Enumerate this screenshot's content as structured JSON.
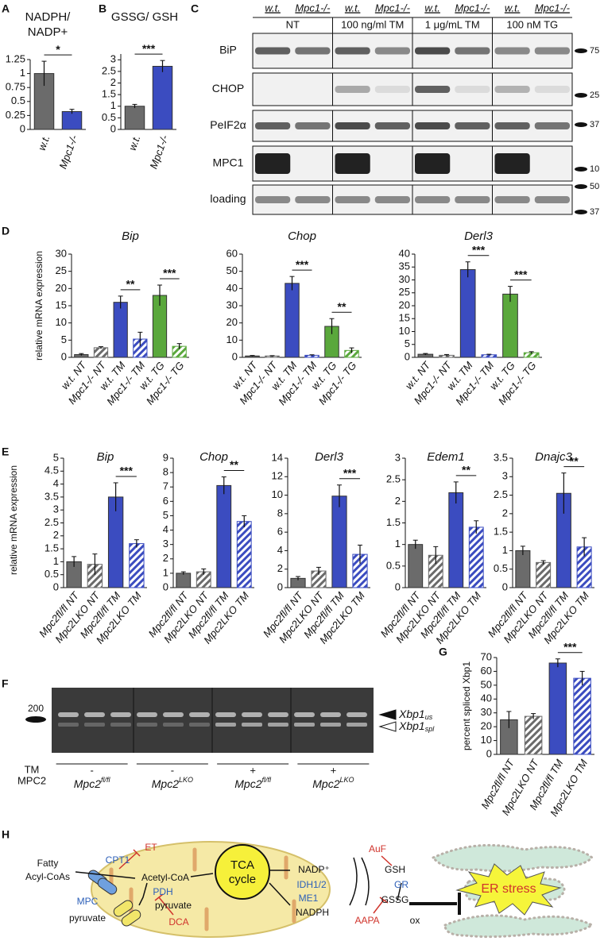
{
  "panel_letters": [
    "A",
    "B",
    "C",
    "D",
    "E",
    "F",
    "G",
    "H"
  ],
  "chart_data": [
    {
      "type": "bar",
      "title": "NADPH/ NADP+",
      "categories": [
        "w.t.",
        "Mpc1-/-"
      ],
      "values": [
        1.0,
        0.32
      ],
      "errors": [
        0.22,
        0.04
      ],
      "colors": [
        "#6b6b6b",
        "#3b4cc0"
      ],
      "hatched": [
        false,
        false
      ],
      "ylim": [
        0,
        1.25
      ],
      "yticks": [
        0,
        0.25,
        0.5,
        0.75,
        1,
        1.25
      ],
      "significance": [
        {
          "label": "*",
          "bars": [
            0,
            1
          ]
        }
      ]
    },
    {
      "type": "bar",
      "title": "GSSG/ GSH",
      "categories": [
        "w.t.",
        "Mpc1-/-"
      ],
      "values": [
        1.0,
        2.72
      ],
      "errors": [
        0.08,
        0.25
      ],
      "colors": [
        "#6b6b6b",
        "#3b4cc0"
      ],
      "hatched": [
        false,
        false
      ],
      "ylim": [
        0,
        3.25
      ],
      "yticks": [
        0,
        0.5,
        1,
        1.5,
        2,
        2.5,
        3
      ],
      "significance": [
        {
          "label": "***",
          "bars": [
            0,
            1
          ]
        }
      ]
    },
    {
      "type": "bar",
      "title": "Bip",
      "ylabel": "relative mRNA expression",
      "categories": [
        "w.t. NT",
        "Mpc1-/- NT",
        "w.t. TM",
        "Mpc1-/- TM",
        "w.t. TG",
        "Mpc1-/- TG"
      ],
      "values": [
        0.8,
        2.8,
        16,
        5.3,
        18,
        3.2
      ],
      "errors": [
        0.3,
        0.3,
        1.8,
        2,
        3,
        0.8
      ],
      "colors": [
        "#6b6b6b",
        "#6b6b6b",
        "#3b4cc0",
        "#3b4cc0",
        "#5aa83c",
        "#5aa83c"
      ],
      "hatched": [
        false,
        true,
        false,
        true,
        false,
        true
      ],
      "ylim": [
        0,
        30
      ],
      "yticks": [
        0,
        5,
        10,
        15,
        20,
        25,
        30
      ],
      "significance": [
        {
          "label": "**",
          "bars": [
            2,
            3
          ]
        },
        {
          "label": "***",
          "bars": [
            4,
            5
          ]
        }
      ]
    },
    {
      "type": "bar",
      "title": "Chop",
      "categories": [
        "w.t. NT",
        "Mpc1-/- NT",
        "w.t. TM",
        "Mpc1-/- TM",
        "w.t. TG",
        "Mpc1-/- TG"
      ],
      "values": [
        0.8,
        0.8,
        43,
        1.2,
        18,
        4
      ],
      "errors": [
        0.3,
        0.2,
        4,
        0.3,
        4.5,
        1.5
      ],
      "colors": [
        "#6b6b6b",
        "#6b6b6b",
        "#3b4cc0",
        "#3b4cc0",
        "#5aa83c",
        "#5aa83c"
      ],
      "hatched": [
        false,
        true,
        false,
        true,
        false,
        true
      ],
      "ylim": [
        0,
        60
      ],
      "yticks": [
        0,
        10,
        20,
        30,
        40,
        50,
        60
      ],
      "significance": [
        {
          "label": "***",
          "bars": [
            2,
            3
          ]
        },
        {
          "label": "**",
          "bars": [
            4,
            5
          ]
        }
      ]
    },
    {
      "type": "bar",
      "title": "Derl3",
      "categories": [
        "w.t. NT",
        "Mpc1-/- NT",
        "w.t. TM",
        "Mpc1-/- TM",
        "w.t. TG",
        "Mpc1-/- TG"
      ],
      "values": [
        1.2,
        0.8,
        34,
        1.0,
        24.5,
        1.8
      ],
      "errors": [
        0.3,
        0.3,
        3,
        0.2,
        3,
        0.4
      ],
      "colors": [
        "#6b6b6b",
        "#6b6b6b",
        "#3b4cc0",
        "#3b4cc0",
        "#5aa83c",
        "#5aa83c"
      ],
      "hatched": [
        false,
        true,
        false,
        true,
        false,
        true
      ],
      "ylim": [
        0,
        40
      ],
      "yticks": [
        0,
        5,
        10,
        15,
        20,
        25,
        30,
        35,
        40
      ],
      "significance": [
        {
          "label": "***",
          "bars": [
            2,
            3
          ]
        },
        {
          "label": "***",
          "bars": [
            4,
            5
          ]
        }
      ]
    },
    {
      "type": "bar",
      "title": "Bip",
      "ylabel": "relative mRNA expression",
      "categories": [
        "Mpc2fl/fl NT",
        "Mpc2LKO NT",
        "Mpc2fl/fl TM",
        "Mpc2LKO TM"
      ],
      "values": [
        1.0,
        0.9,
        3.5,
        1.7
      ],
      "errors": [
        0.2,
        0.4,
        0.55,
        0.15
      ],
      "colors": [
        "#6b6b6b",
        "#6b6b6b",
        "#3b4cc0",
        "#3b4cc0"
      ],
      "hatched": [
        false,
        true,
        false,
        true
      ],
      "ylim": [
        0,
        5
      ],
      "yticks": [
        0,
        0.5,
        1,
        1.5,
        2,
        2.5,
        3,
        3.5,
        4,
        4.5,
        5
      ],
      "significance": [
        {
          "label": "***",
          "bars": [
            2,
            3
          ]
        }
      ]
    },
    {
      "type": "bar",
      "title": "Chop",
      "categories": [
        "Mpc2fl/fl NT",
        "Mpc2LKO NT",
        "Mpc2fl/fl TM",
        "Mpc2LKO TM"
      ],
      "values": [
        1.0,
        1.1,
        7.1,
        4.6
      ],
      "errors": [
        0.1,
        0.2,
        0.6,
        0.4
      ],
      "colors": [
        "#6b6b6b",
        "#6b6b6b",
        "#3b4cc0",
        "#3b4cc0"
      ],
      "hatched": [
        false,
        true,
        false,
        true
      ],
      "ylim": [
        0,
        9
      ],
      "yticks": [
        0,
        1,
        2,
        3,
        4,
        5,
        6,
        7,
        8,
        9
      ],
      "significance": [
        {
          "label": "**",
          "bars": [
            2,
            3
          ]
        }
      ]
    },
    {
      "type": "bar",
      "title": "Derl3",
      "categories": [
        "Mpc2fl/fl NT",
        "Mpc2LKO NT",
        "Mpc2fl/fl TM",
        "Mpc2LKO TM"
      ],
      "values": [
        1.0,
        1.8,
        9.9,
        3.6
      ],
      "errors": [
        0.2,
        0.4,
        1.2,
        1.0
      ],
      "colors": [
        "#6b6b6b",
        "#6b6b6b",
        "#3b4cc0",
        "#3b4cc0"
      ],
      "hatched": [
        false,
        true,
        false,
        true
      ],
      "ylim": [
        0,
        14
      ],
      "yticks": [
        0,
        2,
        4,
        6,
        8,
        10,
        12,
        14
      ],
      "significance": [
        {
          "label": "***",
          "bars": [
            2,
            3
          ]
        }
      ]
    },
    {
      "type": "bar",
      "title": "Edem1",
      "categories": [
        "Mpc2fl/fl NT",
        "Mpc2LKO NT",
        "Mpc2fl/fl TM",
        "Mpc2LKO TM"
      ],
      "values": [
        1.0,
        0.75,
        2.2,
        1.4
      ],
      "errors": [
        0.1,
        0.2,
        0.25,
        0.15
      ],
      "colors": [
        "#6b6b6b",
        "#6b6b6b",
        "#3b4cc0",
        "#3b4cc0"
      ],
      "hatched": [
        false,
        true,
        false,
        true
      ],
      "ylim": [
        0,
        3
      ],
      "yticks": [
        0,
        0.5,
        1,
        1.5,
        2,
        2.5,
        3
      ],
      "significance": [
        {
          "label": "**",
          "bars": [
            2,
            3
          ]
        }
      ]
    },
    {
      "type": "bar",
      "title": "Dnajc3",
      "categories": [
        "Mpc2fl/fl NT",
        "Mpc2LKO NT",
        "Mpc2fl/fl TM",
        "Mpc2LKO TM"
      ],
      "values": [
        1.0,
        0.68,
        2.55,
        1.1
      ],
      "errors": [
        0.12,
        0.05,
        0.55,
        0.25
      ],
      "colors": [
        "#6b6b6b",
        "#6b6b6b",
        "#3b4cc0",
        "#3b4cc0"
      ],
      "hatched": [
        false,
        true,
        false,
        true
      ],
      "ylim": [
        0,
        3.5
      ],
      "yticks": [
        0,
        0.5,
        1,
        1.5,
        2,
        2.5,
        3,
        3.5
      ],
      "significance": [
        {
          "label": "**",
          "bars": [
            2,
            3
          ]
        }
      ]
    },
    {
      "type": "bar",
      "ylabel": "percent spliced Xbp1",
      "categories": [
        "Mpc2fl/fl NT",
        "Mpc2LKO NT",
        "Mpc2fl/fl TM",
        "Mpc2LKO TM"
      ],
      "values": [
        25,
        27.5,
        66,
        55
      ],
      "errors": [
        6,
        2,
        3,
        5
      ],
      "colors": [
        "#6b6b6b",
        "#6b6b6b",
        "#3b4cc0",
        "#3b4cc0"
      ],
      "hatched": [
        false,
        true,
        false,
        true
      ],
      "ylim": [
        0,
        70
      ],
      "yticks": [
        0,
        10,
        20,
        30,
        40,
        50,
        60,
        70
      ],
      "significance": [
        {
          "label": "***",
          "bars": [
            2,
            3
          ]
        }
      ]
    }
  ],
  "blot": {
    "genotypes": [
      "w.t.",
      "Mpc1-/-",
      "w.t.",
      "Mpc1-/-",
      "w.t.",
      "Mpc1-/-",
      "w.t.",
      "Mpc1-/-"
    ],
    "treatments": [
      "NT",
      "100 ng/ml TM",
      "1 μg/mL TM",
      "100 nM TG"
    ],
    "rows": [
      "BiP",
      "CHOP",
      "PeIF2α",
      "MPC1",
      "loading"
    ],
    "markers": [
      "75",
      "25",
      "37",
      "10",
      "50",
      "37"
    ]
  },
  "gel": {
    "marker": "200",
    "bands": [
      {
        "main": "Xbp1",
        "sub": "us"
      },
      {
        "main": "Xbp1",
        "sub": "spl"
      }
    ],
    "row_labels": [
      "TM",
      "MPC2"
    ],
    "tm": [
      "-",
      "-",
      "+",
      "+"
    ],
    "genotypes": [
      {
        "main": "Mpc2",
        "sup": "fl/fl"
      },
      {
        "main": "Mpc2",
        "sup": "LKO"
      },
      {
        "main": "Mpc2",
        "sup": "fl/fl"
      },
      {
        "main": "Mpc2",
        "sup": "LKO"
      }
    ]
  },
  "pathway": {
    "fatty": "Fatty",
    "acyl": "Acyl-CoAs",
    "cpt1": "CPT1",
    "et": "ET",
    "acetyl": "Acetyl-CoA",
    "pdh": "PDH",
    "pyruvate_in": "pyruvate",
    "dca": "DCA",
    "mpc": "MPC",
    "pyruvate_out": "pyruvate",
    "tca1": "TCA",
    "tca2": "cycle",
    "nadp": "NADP⁺",
    "idh": "IDH1/2",
    "me1": "ME1",
    "nadph": "NADPH",
    "auf": "AuF",
    "gsh": "GSH",
    "gr": "GR",
    "gssg": "GSSG",
    "aapa": "AAPA",
    "ox": "ox",
    "er": "ER stress"
  }
}
